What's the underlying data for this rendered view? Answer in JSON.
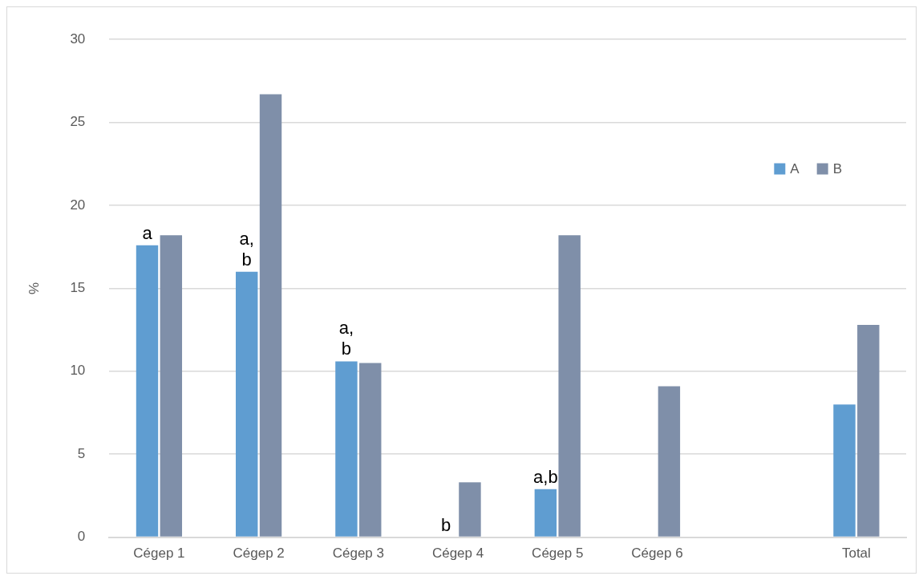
{
  "chart_data": {
    "type": "bar",
    "ylabel": "%",
    "categories": [
      "Cégep 1",
      "Cégep 2",
      "Cégep 3",
      "Cégep 4",
      "Cégep 5",
      "Cégep 6",
      null,
      "Total"
    ],
    "series": [
      {
        "name": "A",
        "color": "#5f9dd1",
        "values": [
          17.6,
          16.0,
          10.6,
          0,
          2.9,
          0,
          null,
          8.0
        ]
      },
      {
        "name": "B",
        "color": "#7f8fa9",
        "values": [
          18.2,
          26.7,
          10.5,
          3.3,
          18.2,
          9.1,
          null,
          12.8
        ]
      }
    ],
    "ylim": [
      0,
      30
    ],
    "yticks": [
      0,
      5,
      10,
      15,
      20,
      25,
      30
    ],
    "grid": "y",
    "legend": "top right",
    "annotations": [
      {
        "text": "a",
        "x": "Cégep 1",
        "y": 17.6
      },
      {
        "text": "a, b",
        "x": "Cégep 2",
        "y": 16.0
      },
      {
        "text": "a, b",
        "x": "Cégep 3",
        "y": 10.6
      },
      {
        "text": "b",
        "x": "Cégep 4",
        "y": 0
      },
      {
        "text": "a,b",
        "x": "Cégep 5",
        "y": 2.9
      }
    ]
  }
}
